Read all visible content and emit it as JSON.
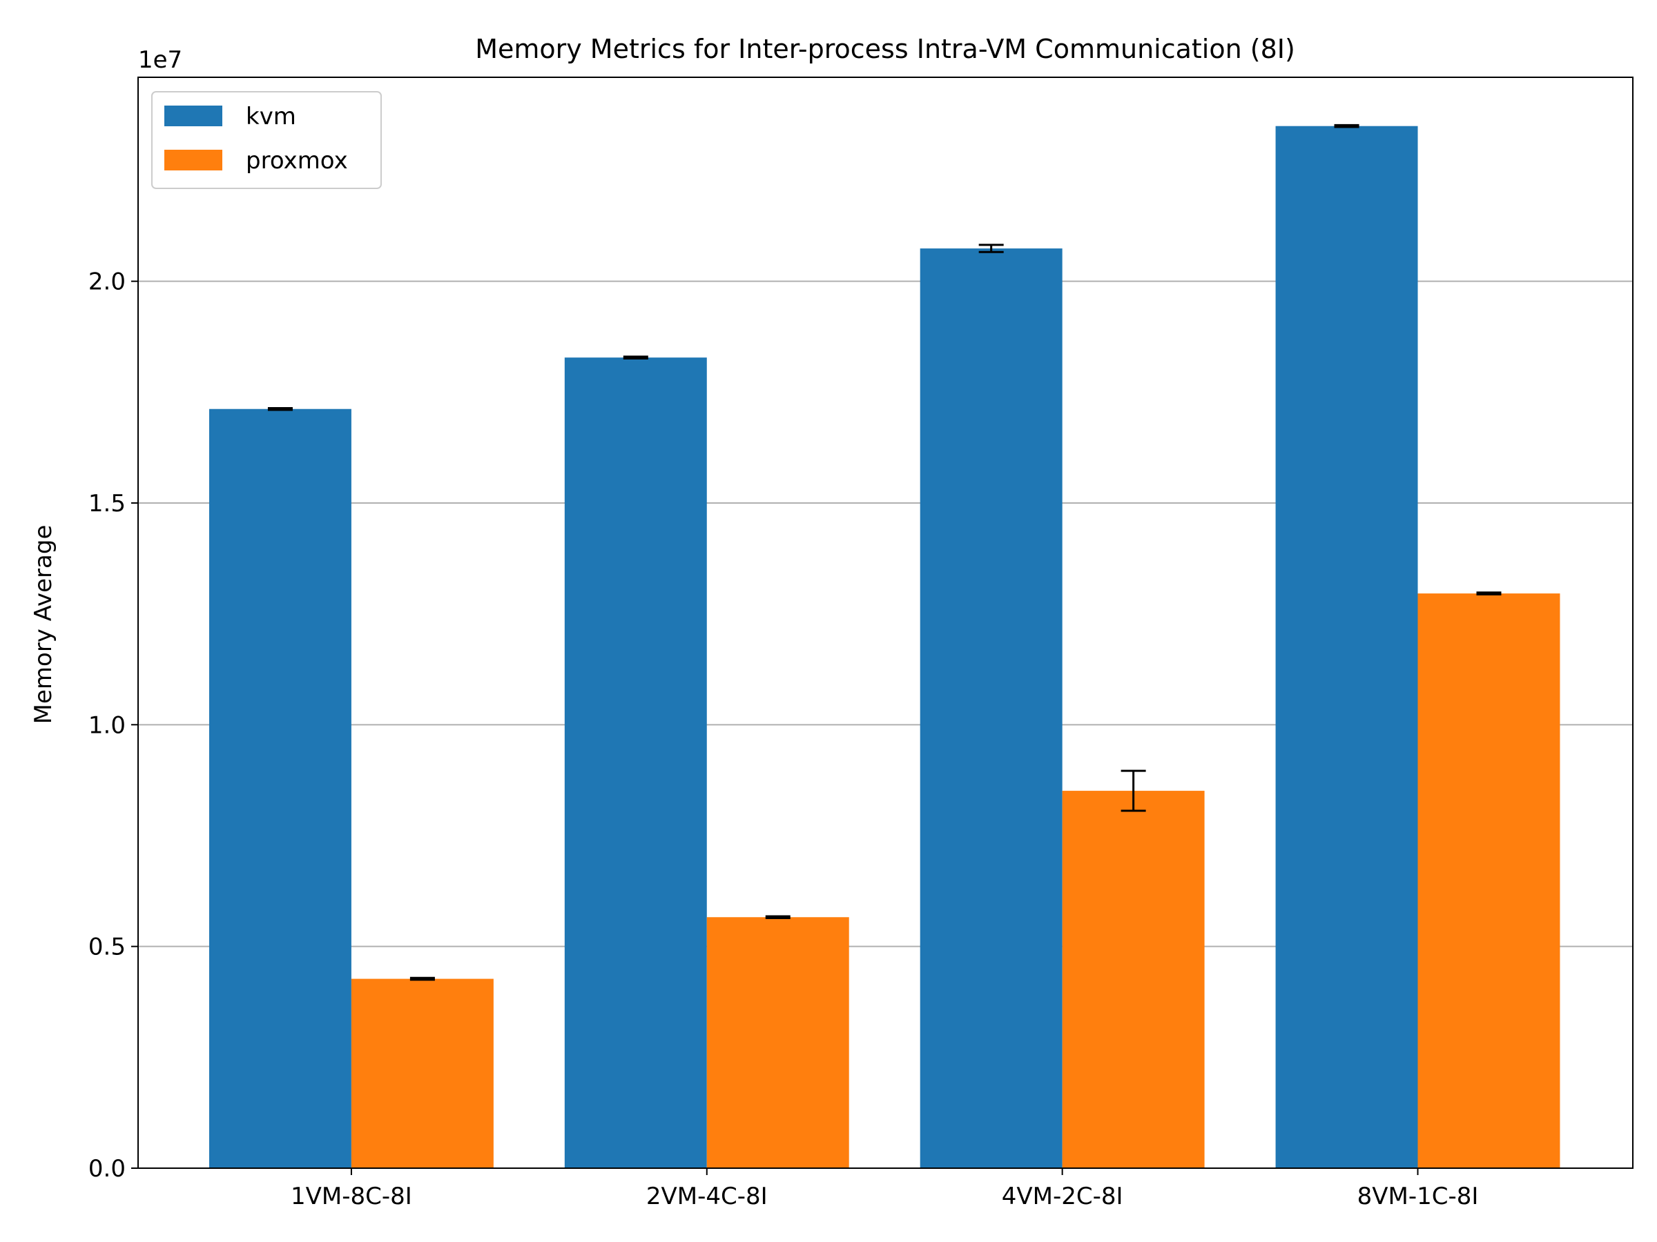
{
  "chart_data": {
    "type": "bar",
    "title": "Memory Metrics for Inter-process Intra-VM Communication (8I)",
    "xlabel": "",
    "ylabel": "Memory Average",
    "offset_label": "1e7",
    "categories": [
      "1VM-8C-8I",
      "2VM-4C-8I",
      "4VM-2C-8I",
      "8VM-1C-8I"
    ],
    "ylim": [
      0,
      2.46
    ],
    "yticks": [
      0.0,
      0.5,
      1.0,
      1.5,
      2.0
    ],
    "ytick_labels": [
      "0.0",
      "0.5",
      "1.0",
      "1.5",
      "2.0"
    ],
    "grid": "y",
    "legend_position": "top-left",
    "series": [
      {
        "name": "kvm",
        "color": "#1f77b4",
        "values": [
          1.712,
          1.828,
          2.074,
          2.35
        ],
        "errors": [
          0.002,
          0.002,
          0.008,
          0.002
        ]
      },
      {
        "name": "proxmox",
        "color": "#ff7f0e",
        "values": [
          0.427,
          0.566,
          0.851,
          1.296
        ],
        "errors": [
          0.002,
          0.002,
          0.045,
          0.002
        ]
      }
    ]
  }
}
